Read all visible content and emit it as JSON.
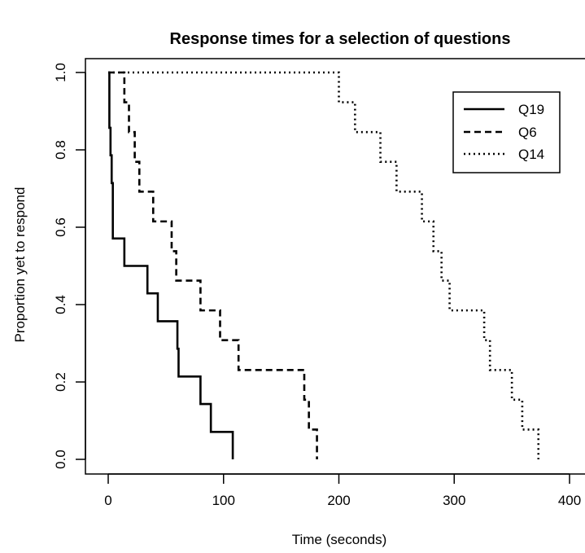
{
  "chart_data": {
    "type": "line",
    "title": "Response times for a selection of questions",
    "xlabel": "Time (seconds)",
    "ylabel": "Proportion yet to respond",
    "xlim": [
      0,
      400
    ],
    "ylim": [
      0,
      1
    ],
    "x_ticks": [
      "0",
      "100",
      "200",
      "300",
      "400"
    ],
    "x_tick_values": [
      0,
      100,
      200,
      300,
      400
    ],
    "y_ticks": [
      "0.0",
      "0.2",
      "0.4",
      "0.6",
      "0.8",
      "1.0"
    ],
    "y_tick_values": [
      0,
      0.2,
      0.4,
      0.6,
      0.8,
      1.0
    ],
    "grid": false,
    "legend_position": "top-right",
    "series": [
      {
        "name": "Q19",
        "style": "solid",
        "step": true,
        "points": [
          [
            0,
            1.0
          ],
          [
            1,
            0.857
          ],
          [
            2,
            0.786
          ],
          [
            3,
            0.714
          ],
          [
            4,
            0.571
          ],
          [
            14,
            0.5
          ],
          [
            34,
            0.429
          ],
          [
            43,
            0.357
          ],
          [
            60,
            0.286
          ],
          [
            61,
            0.214
          ],
          [
            80,
            0.143
          ],
          [
            89,
            0.071
          ],
          [
            108,
            0.0
          ]
        ]
      },
      {
        "name": "Q6",
        "style": "dashed",
        "step": true,
        "points": [
          [
            7,
            1.0
          ],
          [
            14,
            0.923
          ],
          [
            18,
            0.846
          ],
          [
            23,
            0.769
          ],
          [
            27,
            0.692
          ],
          [
            39,
            0.615
          ],
          [
            55,
            0.538
          ],
          [
            59,
            0.462
          ],
          [
            80,
            0.385
          ],
          [
            97,
            0.308
          ],
          [
            113,
            0.231
          ],
          [
            170,
            0.154
          ],
          [
            174,
            0.077
          ],
          [
            181,
            0.0
          ]
        ]
      },
      {
        "name": "Q14",
        "style": "dotted",
        "step": true,
        "points": [
          [
            183,
            1.0
          ],
          [
            200,
            0.923
          ],
          [
            214,
            0.846
          ],
          [
            236,
            0.769
          ],
          [
            250,
            0.692
          ],
          [
            272,
            0.615
          ],
          [
            282,
            0.538
          ],
          [
            289,
            0.462
          ],
          [
            296,
            0.385
          ],
          [
            326,
            0.308
          ],
          [
            331,
            0.231
          ],
          [
            350,
            0.154
          ],
          [
            359,
            0.077
          ],
          [
            373,
            0.0
          ]
        ]
      }
    ]
  }
}
